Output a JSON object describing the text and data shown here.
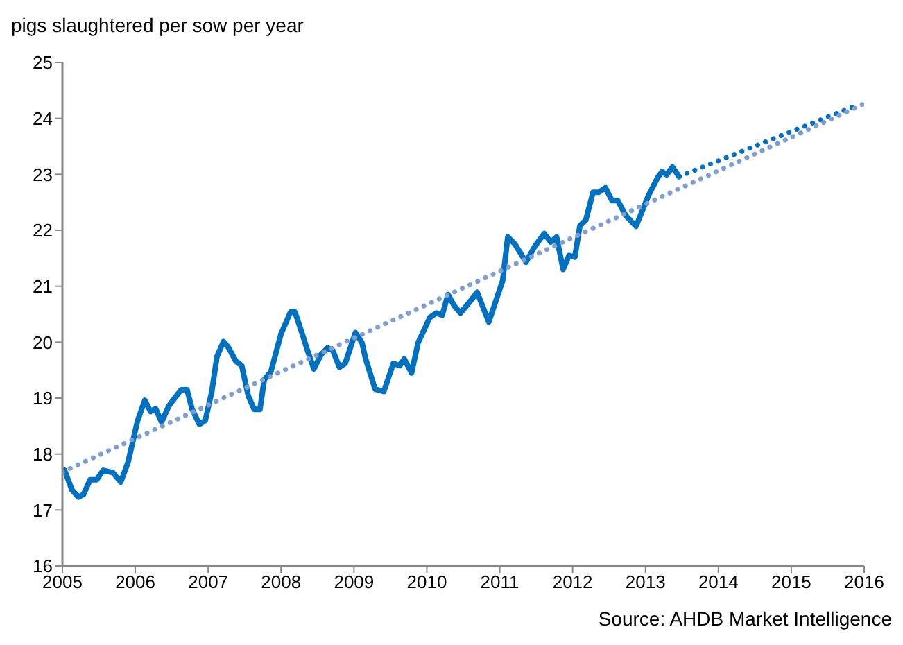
{
  "chart_data": {
    "type": "line",
    "ylabel": "pigs slaughtered per sow per year",
    "annotations": [
      "Source: AHDB Market Intelligence"
    ],
    "xlim": [
      2005,
      2016
    ],
    "xticks": [
      2005,
      2006,
      2007,
      2008,
      2009,
      2010,
      2011,
      2012,
      2013,
      2014,
      2015,
      2016
    ],
    "ylim": [
      16,
      25
    ],
    "yticks": [
      16,
      17,
      18,
      19,
      20,
      21,
      22,
      23,
      24,
      25
    ],
    "marker": "none",
    "series": [
      {
        "color": "#0070c0",
        "line_style": "solid",
        "x": [
          2005.03,
          2005.13,
          2005.22,
          2005.29,
          2005.38,
          2005.47,
          2005.56,
          2005.69,
          2005.8,
          2005.9,
          2006.03,
          2006.13,
          2006.21,
          2006.28,
          2006.36,
          2006.46,
          2006.54,
          2006.63,
          2006.71,
          2006.78,
          2006.88,
          2006.96,
          2007.05,
          2007.12,
          2007.21,
          2007.28,
          2007.38,
          2007.46,
          2007.55,
          2007.63,
          2007.71,
          2007.77,
          2007.86,
          2008.0,
          2008.13,
          2008.19,
          2008.29,
          2008.36,
          2008.45,
          2008.55,
          2008.64,
          2008.71,
          2008.8,
          2008.88,
          2009.02,
          2009.11,
          2009.16,
          2009.29,
          2009.41,
          2009.54,
          2009.63,
          2009.69,
          2009.79,
          2009.88,
          2010.04,
          2010.13,
          2010.21,
          2010.29,
          2010.38,
          2010.46,
          2010.57,
          2010.69,
          2010.85,
          2011.04,
          2011.11,
          2011.21,
          2011.36,
          2011.48,
          2011.61,
          2011.7,
          2011.78,
          2011.87,
          2011.95,
          2012.03,
          2012.1,
          2012.18,
          2012.28,
          2012.36,
          2012.45,
          2012.54,
          2012.62,
          2012.73,
          2012.87,
          2013.04,
          2013.17,
          2013.23,
          2013.29,
          2013.37,
          2013.46
        ],
        "values": [
          17.71,
          17.36,
          17.23,
          17.28,
          17.54,
          17.54,
          17.71,
          17.67,
          17.5,
          17.85,
          18.59,
          18.96,
          18.76,
          18.81,
          18.57,
          18.86,
          19.0,
          19.15,
          19.15,
          18.8,
          18.53,
          18.6,
          19.12,
          19.74,
          20.01,
          19.9,
          19.66,
          19.58,
          19.04,
          18.8,
          18.8,
          19.33,
          19.47,
          20.15,
          20.54,
          20.54,
          20.15,
          19.86,
          19.52,
          19.78,
          19.9,
          19.85,
          19.55,
          19.62,
          20.17,
          19.99,
          19.7,
          19.16,
          19.12,
          19.62,
          19.58,
          19.7,
          19.45,
          19.99,
          20.44,
          20.52,
          20.48,
          20.85,
          20.64,
          20.52,
          20.69,
          20.89,
          20.36,
          21.1,
          21.88,
          21.75,
          21.43,
          21.71,
          21.94,
          21.79,
          21.88,
          21.3,
          21.55,
          21.52,
          22.08,
          22.18,
          22.68,
          22.68,
          22.76,
          22.53,
          22.53,
          22.26,
          22.07,
          22.62,
          22.95,
          23.05,
          22.99,
          23.13,
          22.96
        ]
      },
      {
        "color": "#0070c0",
        "line_style": "dotted",
        "x": [
          2013.46,
          2015.91
        ],
        "values": [
          22.96,
          24.24
        ]
      },
      {
        "color": "#7f9fd3",
        "line_style": "dotted",
        "x": [
          2005.0,
          2016.0
        ],
        "values": [
          17.68,
          24.26
        ]
      }
    ]
  }
}
